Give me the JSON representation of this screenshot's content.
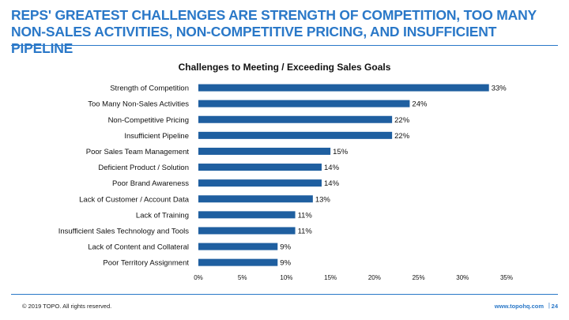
{
  "headline": "REPS' GREATEST CHALLENGES ARE STRENGTH OF COMPETITION, TOO MANY NON-SALES ACTIVITIES, NON-COMPETITIVE PRICING, AND INSUFFICIENT PIPELINE",
  "footer": {
    "copyright": "© 2019 TOPO. All rights reserved.",
    "website": "www.topohq.com",
    "separator": "|",
    "page_number": "24"
  },
  "colors": {
    "accent": "#2a78c8",
    "bar": "#1f5fa0",
    "text": "#111111"
  },
  "chart_data": {
    "type": "bar",
    "orientation": "horizontal",
    "title": "Challenges to Meeting / Exceeding Sales Goals",
    "xlabel": "",
    "ylabel": "",
    "categories": [
      "Strength of Competition",
      "Too Many Non-Sales Activities",
      "Non-Competitive Pricing",
      "Insufficient Pipeline",
      "Poor Sales Team Management",
      "Deficient Product / Solution",
      "Poor Brand Awareness",
      "Lack of Customer / Account Data",
      "Lack of Training",
      "Insufficient Sales Technology and Tools",
      "Lack of Content and Collateral",
      "Poor Territory Assignment"
    ],
    "values": [
      33,
      24,
      22,
      22,
      15,
      14,
      14,
      13,
      11,
      11,
      9,
      9
    ],
    "value_labels": [
      "33%",
      "24%",
      "22%",
      "22%",
      "15%",
      "14%",
      "14%",
      "13%",
      "11%",
      "11%",
      "9%",
      "9%"
    ],
    "xlim": [
      0,
      35
    ],
    "xticks": [
      0,
      5,
      10,
      15,
      20,
      25,
      30,
      35
    ],
    "xtick_labels": [
      "0%",
      "5%",
      "10%",
      "15%",
      "20%",
      "25%",
      "30%",
      "35%"
    ],
    "grid": false,
    "legend": false
  }
}
